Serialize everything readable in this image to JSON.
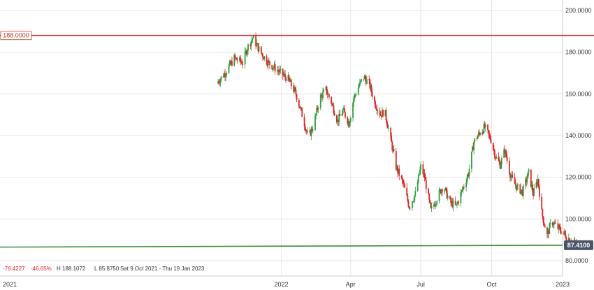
{
  "chart_data": {
    "type": "candlestick",
    "title": "",
    "xlabel": "",
    "ylabel": "",
    "ylim": [
      78,
      205
    ],
    "y_ticks": [
      {
        "value": 200,
        "label": "200.0000"
      },
      {
        "value": 180,
        "label": "180.0000"
      },
      {
        "value": 160,
        "label": "160.0000"
      },
      {
        "value": 140,
        "label": "140.0000"
      },
      {
        "value": 120,
        "label": "120.0000"
      },
      {
        "value": 100,
        "label": "100.0000"
      },
      {
        "value": 80,
        "label": "80.0000"
      }
    ],
    "x_range": [
      "2021-01-01",
      "2023-01-01"
    ],
    "x_ticks": [
      {
        "date": "2021-01-01",
        "label": "2021"
      },
      {
        "date": "2022-01-01",
        "label": "2022"
      },
      {
        "date": "2022-04-01",
        "label": "Apr"
      },
      {
        "date": "2022-07-01",
        "label": "Jul"
      },
      {
        "date": "2022-10-01",
        "label": "Oct"
      },
      {
        "date": "2023-01-01",
        "label": "2023"
      }
    ],
    "grid": true,
    "colors": {
      "up": "#2e9e3e",
      "down": "#e02424",
      "resistance": "#c0392b",
      "support": "#3a8f3a",
      "grid": "#e6e6e6",
      "badge": "#4a5568"
    },
    "close_path": [
      [
        "2021-10-09",
        165
      ],
      [
        "2021-10-20",
        170
      ],
      [
        "2021-11-01",
        177
      ],
      [
        "2021-11-12",
        175
      ],
      [
        "2021-11-18",
        182
      ],
      [
        "2021-11-25",
        187
      ],
      [
        "2021-12-05",
        180
      ],
      [
        "2021-12-15",
        175
      ],
      [
        "2021-12-28",
        171
      ],
      [
        "2022-01-10",
        167
      ],
      [
        "2022-01-20",
        160
      ],
      [
        "2022-01-28",
        150
      ],
      [
        "2022-02-05",
        139
      ],
      [
        "2022-02-12",
        145
      ],
      [
        "2022-02-20",
        158
      ],
      [
        "2022-02-28",
        162
      ],
      [
        "2022-03-08",
        155
      ],
      [
        "2022-03-15",
        147
      ],
      [
        "2022-03-22",
        152
      ],
      [
        "2022-03-30",
        146
      ],
      [
        "2022-04-05",
        158
      ],
      [
        "2022-04-12",
        164
      ],
      [
        "2022-04-18",
        168
      ],
      [
        "2022-04-25",
        165
      ],
      [
        "2022-05-02",
        156
      ],
      [
        "2022-05-10",
        150
      ],
      [
        "2022-05-15",
        152
      ],
      [
        "2022-05-22",
        140
      ],
      [
        "2022-05-30",
        125
      ],
      [
        "2022-06-08",
        117
      ],
      [
        "2022-06-16",
        106
      ],
      [
        "2022-06-24",
        112
      ],
      [
        "2022-07-01",
        125
      ],
      [
        "2022-07-06",
        120
      ],
      [
        "2022-07-14",
        104
      ],
      [
        "2022-07-22",
        110
      ],
      [
        "2022-07-30",
        116
      ],
      [
        "2022-08-08",
        108
      ],
      [
        "2022-08-16",
        106
      ],
      [
        "2022-08-24",
        114
      ],
      [
        "2022-09-01",
        122
      ],
      [
        "2022-09-08",
        137
      ],
      [
        "2022-09-15",
        141
      ],
      [
        "2022-09-22",
        144
      ],
      [
        "2022-09-30",
        138
      ],
      [
        "2022-10-06",
        130
      ],
      [
        "2022-10-12",
        126
      ],
      [
        "2022-10-18",
        133
      ],
      [
        "2022-10-26",
        120
      ],
      [
        "2022-11-03",
        115
      ],
      [
        "2022-11-10",
        113
      ],
      [
        "2022-11-18",
        122
      ],
      [
        "2022-11-24",
        112
      ],
      [
        "2022-11-30",
        119
      ],
      [
        "2022-12-05",
        103
      ],
      [
        "2022-12-12",
        92
      ],
      [
        "2022-12-18",
        99
      ],
      [
        "2022-12-25",
        96
      ],
      [
        "2022-12-31",
        94
      ],
      [
        "2023-01-08",
        91
      ],
      [
        "2023-01-14",
        89
      ],
      [
        "2023-01-19",
        87.4
      ]
    ],
    "annotations": {
      "resistance": {
        "value": 188,
        "label": "188.0000"
      },
      "support": {
        "start_value": 86.5,
        "end_value": 87.41
      },
      "last_price_label": "87.4100"
    },
    "stats": {
      "change": "-76.4227",
      "change_pct": "-46.65%",
      "high": "H 188.1072",
      "low": "L 85.8750",
      "date_range": "Sat 9 Oct 2021 - Thu 19 Jan 2023"
    }
  }
}
